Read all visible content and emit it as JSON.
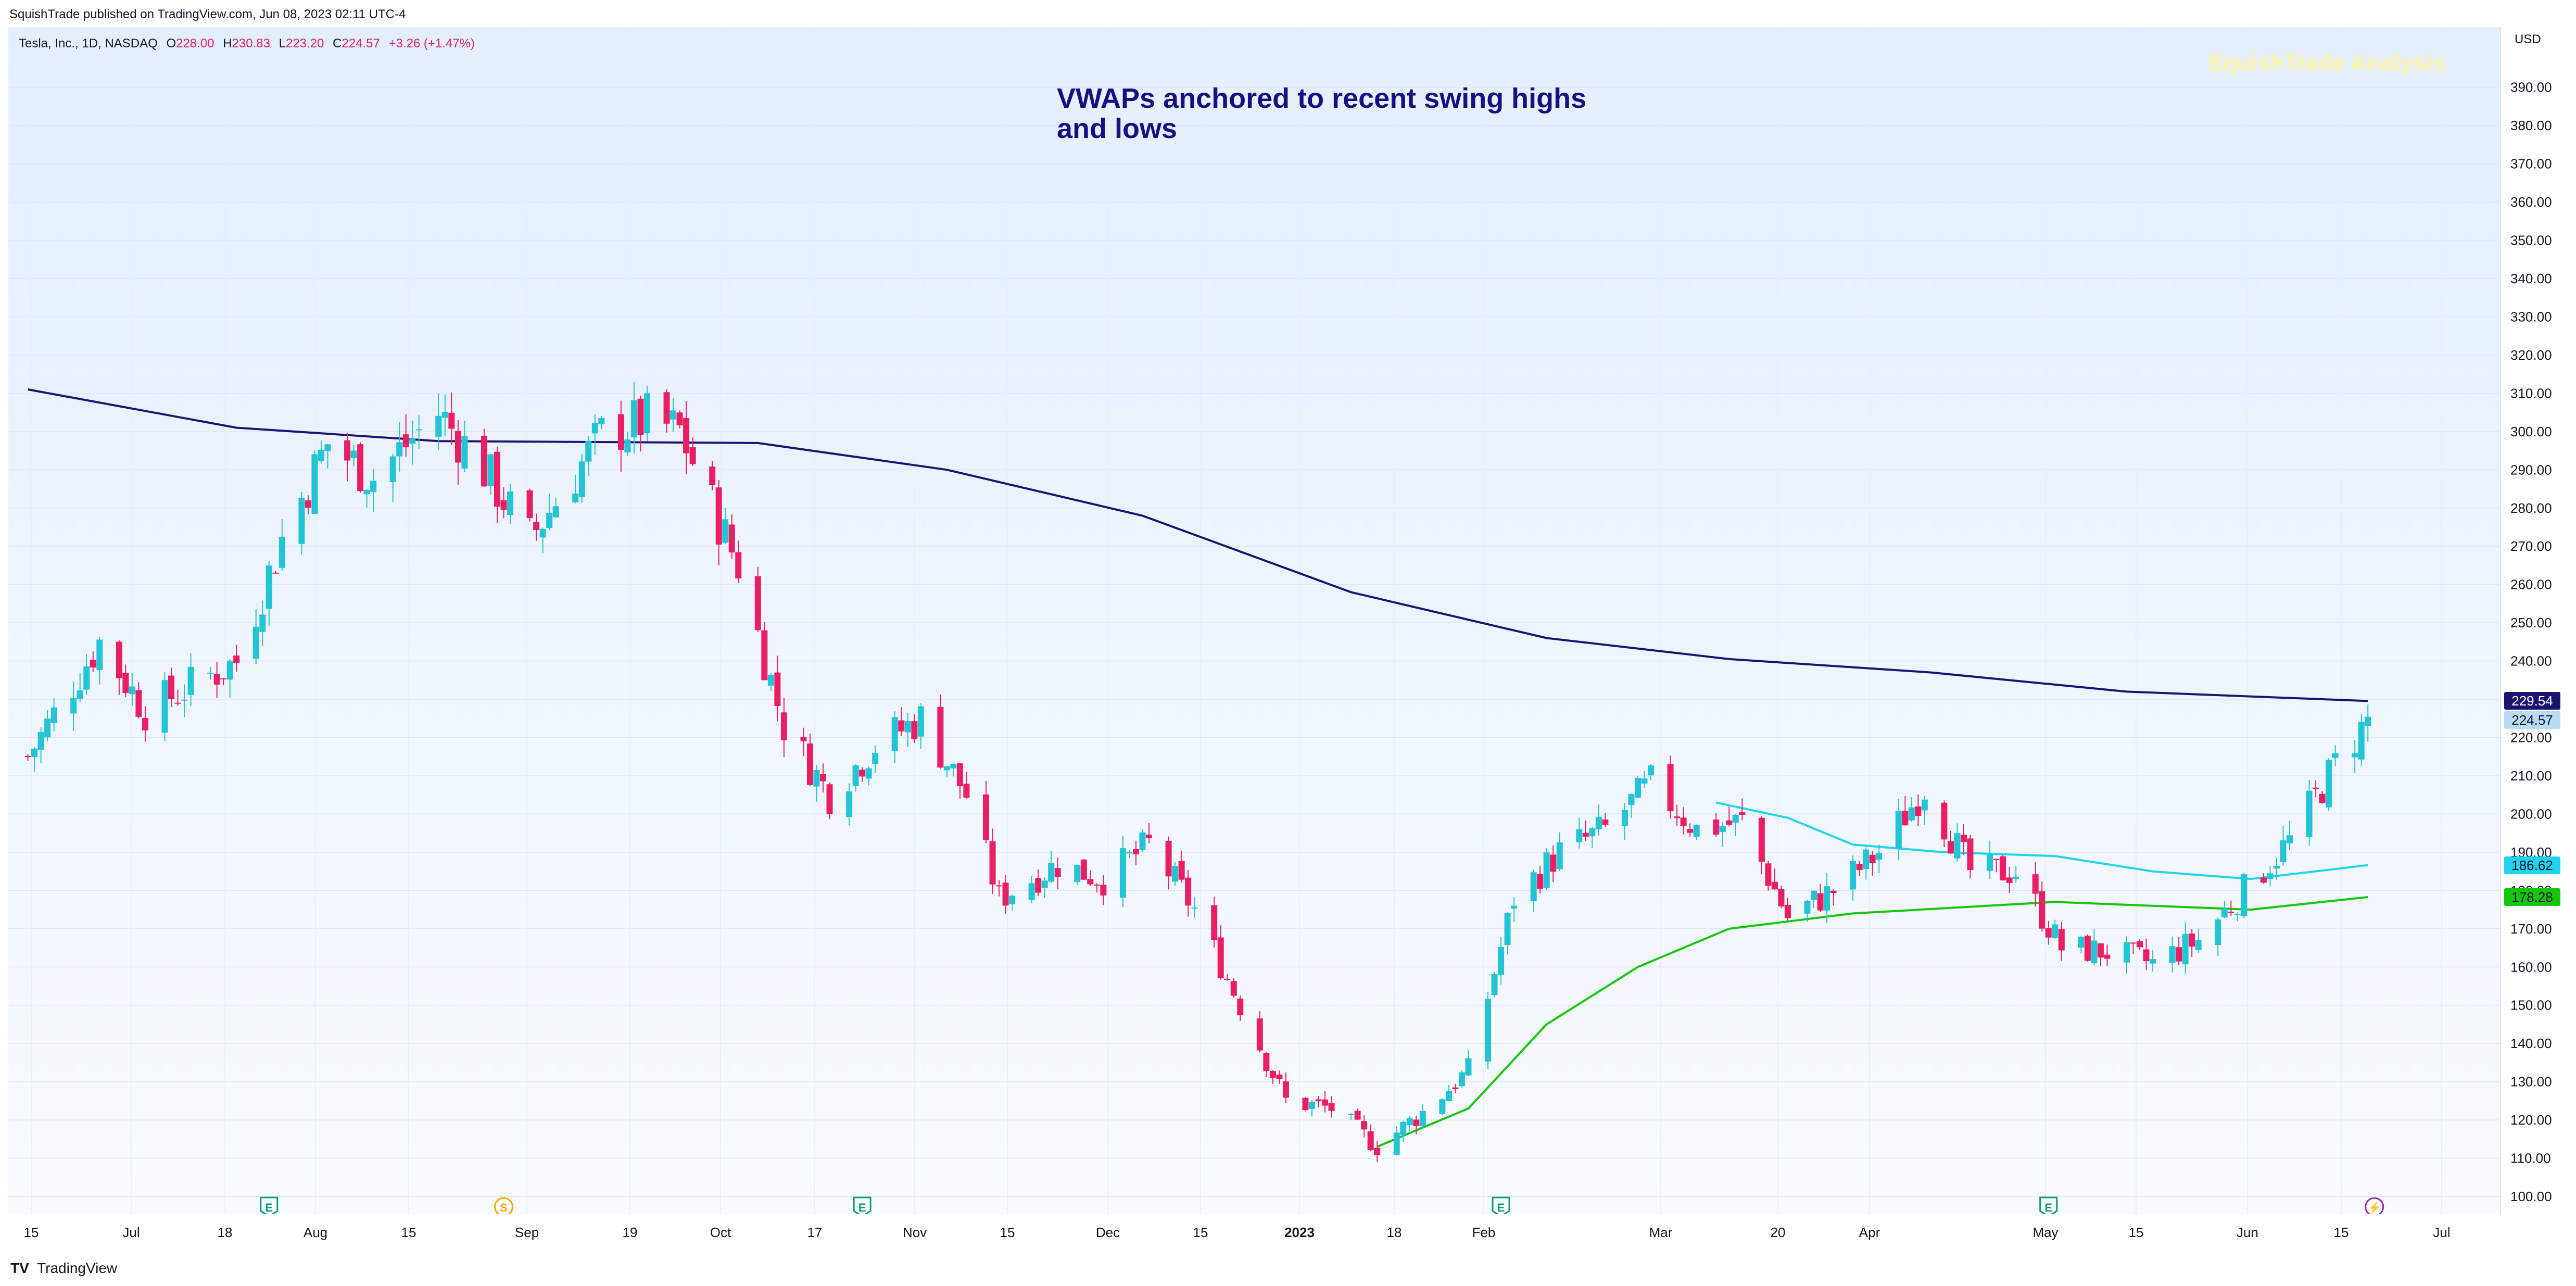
{
  "header": {
    "published_text": "SquishTrade published on TradingView.com, Jun 08, 2023 02:11 UTC-4"
  },
  "legend": {
    "symbol": "Tesla, Inc., 1D, NASDAQ",
    "o_label": "O",
    "o_value": "228.00",
    "h_label": "H",
    "h_value": "230.83",
    "l_label": "L",
    "l_value": "223.20",
    "c_label": "C",
    "c_value": "224.57",
    "change": "+3.26 (+1.47%)"
  },
  "headline": "VWAPs anchored to recent swing highs and lows",
  "watermark": "SquishTrade Analysis",
  "footer": {
    "brand": "TradingView"
  },
  "colors": {
    "up": "#22c4d6",
    "down": "#e91e63",
    "vwap_high": "#1a1470",
    "vwap_swing_low": "#22d3ee",
    "vwap_low": "#16c60c"
  },
  "chart_data": {
    "type": "candlestick",
    "currency": "USD",
    "ylim": [
      100,
      395
    ],
    "y_ticks": [
      "100.00",
      "110.00",
      "120.00",
      "130.00",
      "140.00",
      "150.00",
      "160.00",
      "170.00",
      "180.00",
      "190.00",
      "200.00",
      "210.00",
      "220.00",
      "230.00",
      "240.00",
      "250.00",
      "260.00",
      "270.00",
      "280.00",
      "290.00",
      "300.00",
      "310.00",
      "320.00",
      "330.00",
      "340.00",
      "350.00",
      "360.00",
      "370.00",
      "380.00",
      "390.00"
    ],
    "x_ticks": [
      "15",
      "Jul",
      "18",
      "Aug",
      "15",
      "Sep",
      "19",
      "Oct",
      "17",
      "Nov",
      "15",
      "Dec",
      "15",
      "2023",
      "18",
      "Feb",
      "Mar",
      "20",
      "Apr",
      "May",
      "15",
      "Jun",
      "15",
      "Jul"
    ],
    "price_labels": [
      {
        "value": 229.54,
        "text": "229.54",
        "bg": "#1a1470",
        "fg": "#ffffff"
      },
      {
        "value": 224.57,
        "text": "224.57",
        "bg": "#b8dcf5",
        "fg": "#131722"
      },
      {
        "value": 186.62,
        "text": "186.62",
        "bg": "#22d3ee",
        "fg": "#131722"
      },
      {
        "value": 178.28,
        "text": "178.28",
        "bg": "#16c60c",
        "fg": "#131722"
      }
    ],
    "events": [
      {
        "label": "E",
        "x": "2022-07-20"
      },
      {
        "label": "S",
        "x": "2022-08-25"
      },
      {
        "label": "E",
        "x": "2022-10-19"
      },
      {
        "label": "E",
        "x": "2023-01-25"
      },
      {
        "label": "E",
        "x": "2023-04-19"
      },
      {
        "label": "⚡",
        "x": "2023-06-08"
      }
    ],
    "close_series": [
      {
        "date": "2022-06-13",
        "close": 215
      },
      {
        "date": "2022-06-24",
        "close": 245
      },
      {
        "date": "2022-07-01",
        "close": 227
      },
      {
        "date": "2022-07-15",
        "close": 240
      },
      {
        "date": "2022-07-22",
        "close": 272
      },
      {
        "date": "2022-07-29",
        "close": 297
      },
      {
        "date": "2022-08-05",
        "close": 288
      },
      {
        "date": "2022-08-15",
        "close": 305
      },
      {
        "date": "2022-08-22",
        "close": 290
      },
      {
        "date": "2022-08-29",
        "close": 272
      },
      {
        "date": "2022-09-09",
        "close": 299
      },
      {
        "date": "2022-09-16",
        "close": 303
      },
      {
        "date": "2022-09-21",
        "close": 300
      },
      {
        "date": "2022-09-30",
        "close": 265
      },
      {
        "date": "2022-10-07",
        "close": 223
      },
      {
        "date": "2022-10-14",
        "close": 205
      },
      {
        "date": "2022-10-21",
        "close": 218
      },
      {
        "date": "2022-10-28",
        "close": 225
      },
      {
        "date": "2022-11-04",
        "close": 205
      },
      {
        "date": "2022-11-09",
        "close": 178
      },
      {
        "date": "2022-11-18",
        "close": 187
      },
      {
        "date": "2022-11-25",
        "close": 183
      },
      {
        "date": "2022-12-02",
        "close": 192
      },
      {
        "date": "2022-12-09",
        "close": 175
      },
      {
        "date": "2022-12-16",
        "close": 150
      },
      {
        "date": "2022-12-23",
        "close": 125
      },
      {
        "date": "2022-12-30",
        "close": 123
      },
      {
        "date": "2023-01-06",
        "close": 113
      },
      {
        "date": "2023-01-13",
        "close": 122
      },
      {
        "date": "2023-01-20",
        "close": 133
      },
      {
        "date": "2023-01-27",
        "close": 178
      },
      {
        "date": "2023-02-03",
        "close": 190
      },
      {
        "date": "2023-02-10",
        "close": 196
      },
      {
        "date": "2023-02-17",
        "close": 208
      },
      {
        "date": "2023-02-24",
        "close": 196
      },
      {
        "date": "2023-03-03",
        "close": 198
      },
      {
        "date": "2023-03-10",
        "close": 173
      },
      {
        "date": "2023-03-17",
        "close": 180
      },
      {
        "date": "2023-03-24",
        "close": 190
      },
      {
        "date": "2023-03-31",
        "close": 207
      },
      {
        "date": "2023-04-07",
        "close": 185
      },
      {
        "date": "2023-04-14",
        "close": 185
      },
      {
        "date": "2023-04-21",
        "close": 165
      },
      {
        "date": "2023-04-28",
        "close": 164
      },
      {
        "date": "2023-05-05",
        "close": 161
      },
      {
        "date": "2023-05-12",
        "close": 167
      },
      {
        "date": "2023-05-19",
        "close": 180
      },
      {
        "date": "2023-05-26",
        "close": 193
      },
      {
        "date": "2023-06-02",
        "close": 213
      },
      {
        "date": "2023-06-07",
        "close": 224.57
      }
    ],
    "vwap_high_anchor": [
      {
        "date": "2022-06-13",
        "value": 311
      },
      {
        "date": "2022-07-15",
        "value": 301
      },
      {
        "date": "2022-08-15",
        "value": 297.5
      },
      {
        "date": "2022-10-03",
        "value": 297
      },
      {
        "date": "2022-11-01",
        "value": 290
      },
      {
        "date": "2022-12-01",
        "value": 278
      },
      {
        "date": "2023-01-02",
        "value": 258
      },
      {
        "date": "2023-02-01",
        "value": 246
      },
      {
        "date": "2023-03-01",
        "value": 240.5
      },
      {
        "date": "2023-04-01",
        "value": 237
      },
      {
        "date": "2023-05-01",
        "value": 232
      },
      {
        "date": "2023-06-07",
        "value": 229.54
      }
    ],
    "vwap_swing_low_anchor": [
      {
        "date": "2023-02-27",
        "value": 203
      },
      {
        "date": "2023-03-10",
        "value": 199
      },
      {
        "date": "2023-03-20",
        "value": 192
      },
      {
        "date": "2023-04-03",
        "value": 190
      },
      {
        "date": "2023-04-20",
        "value": 189
      },
      {
        "date": "2023-05-05",
        "value": 185
      },
      {
        "date": "2023-05-20",
        "value": 183
      },
      {
        "date": "2023-06-07",
        "value": 186.62
      }
    ],
    "vwap_low_anchor": [
      {
        "date": "2023-01-06",
        "value": 113
      },
      {
        "date": "2023-01-20",
        "value": 123
      },
      {
        "date": "2023-02-01",
        "value": 145
      },
      {
        "date": "2023-02-15",
        "value": 160
      },
      {
        "date": "2023-03-01",
        "value": 170
      },
      {
        "date": "2023-03-20",
        "value": 174
      },
      {
        "date": "2023-04-20",
        "value": 177
      },
      {
        "date": "2023-05-20",
        "value": 175
      },
      {
        "date": "2023-06-07",
        "value": 178.28
      }
    ]
  }
}
